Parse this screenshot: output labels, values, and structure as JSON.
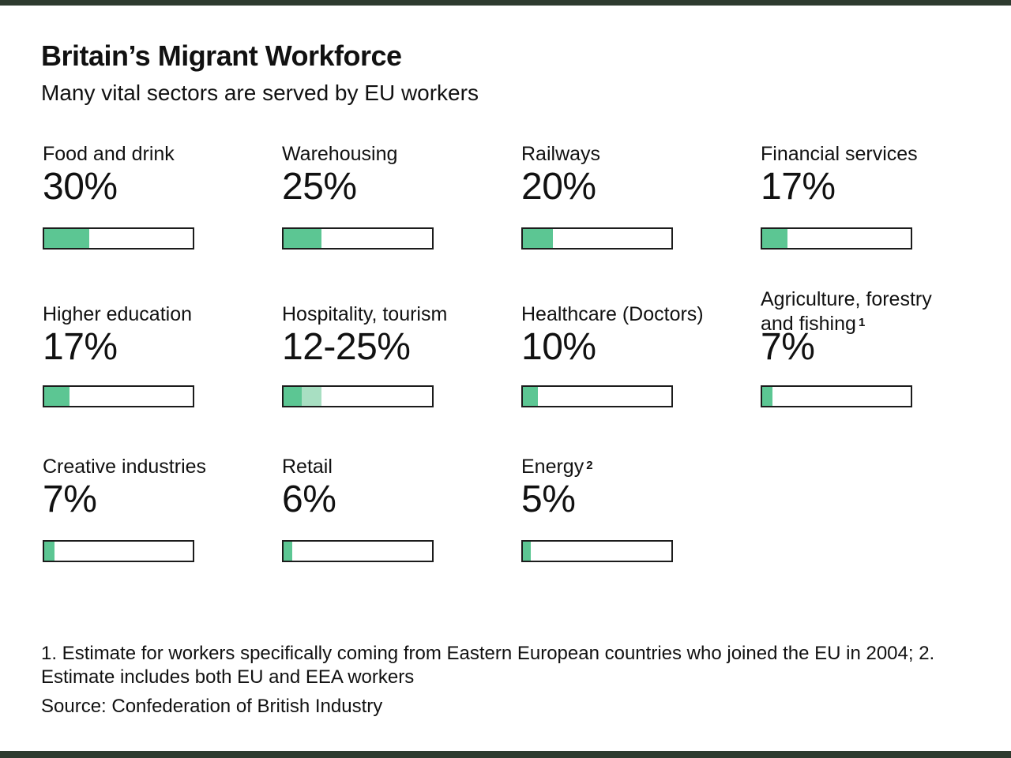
{
  "colors": {
    "accent": "#5cc693",
    "accent_light": "#a8dfc2",
    "rule": "#2e3b2f",
    "text": "#111111"
  },
  "chart_data": {
    "type": "bar",
    "title": "Britain’s Migrant Workforce",
    "subtitle": "Many vital sectors are served by EU workers",
    "scale": [
      0,
      100
    ],
    "items": [
      {
        "label": "Food and drink",
        "value_text": "30%",
        "value": 30
      },
      {
        "label": "Warehousing",
        "value_text": "25%",
        "value": 25
      },
      {
        "label": "Railways",
        "value_text": "20%",
        "value": 20
      },
      {
        "label": "Financial services",
        "value_text": "17%",
        "value": 17
      },
      {
        "label": "Higher education",
        "value_text": "17%",
        "value": 17
      },
      {
        "label": "Hospitality, tourism",
        "value_text": "12-25%",
        "value": 12,
        "range_high": 25
      },
      {
        "label": "Healthcare (Doctors)",
        "value_text": "10%",
        "value": 10
      },
      {
        "label_lines": [
          "Agriculture, forestry",
          "and fishing"
        ],
        "footnote": "1",
        "value_text": "7%",
        "value": 7
      },
      {
        "label": "Creative industries",
        "value_text": "7%",
        "value": 7
      },
      {
        "label": "Retail",
        "value_text": "6%",
        "value": 6
      },
      {
        "label": "Energy",
        "footnote": "2",
        "value_text": "5%",
        "value": 5
      }
    ]
  },
  "footnotes": {
    "text": "1. Estimate for workers specifically coming from Eastern European countries who joined the EU in 2004; 2. Estimate includes both EU and EEA workers"
  },
  "source": "Source: Confederation of British Industry"
}
